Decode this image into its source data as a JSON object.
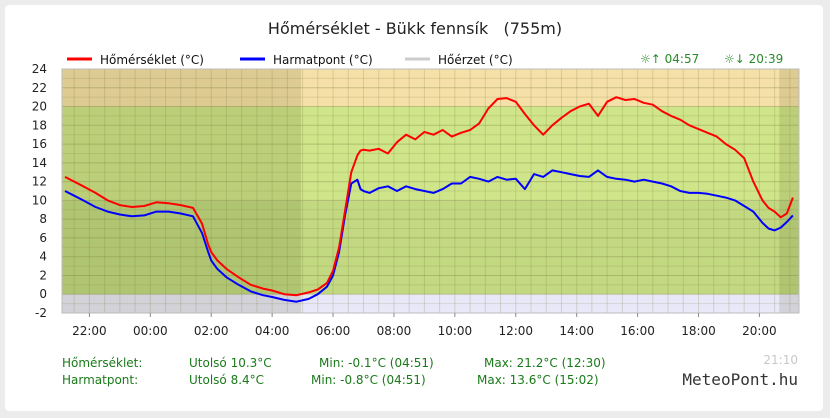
{
  "chart_data": {
    "type": "line",
    "title": "Hőmérséklet - Bükk fennsík   (755m)",
    "ylim": [
      -2,
      24
    ],
    "y_ticks": [
      "24",
      "22",
      "20",
      "18",
      "16",
      "14",
      "12",
      "10",
      "8",
      "6",
      "4",
      "2",
      "0",
      "-2"
    ],
    "x_ticks": [
      "22:00",
      "00:00",
      "02:00",
      "04:00",
      "06:00",
      "08:00",
      "10:00",
      "12:00",
      "14:00",
      "16:00",
      "18:00",
      "20:00"
    ],
    "x_range_hours": [
      21.1,
      45.3
    ],
    "night_shading": [
      [
        21.1,
        28.95
      ],
      [
        44.65,
        45.3
      ]
    ],
    "bands": [
      {
        "from": 20,
        "to": 24,
        "color": "#f5e0a8"
      },
      {
        "from": 10,
        "to": 20,
        "color": "#cfe58a"
      },
      {
        "from": 0,
        "to": 10,
        "color": "#c2d982"
      },
      {
        "from": -2,
        "to": 0,
        "color": "#e8e8f8"
      }
    ],
    "legend": [
      {
        "label": "Hőmérséklet (°C)",
        "color": "#ff0000"
      },
      {
        "label": "Harmatpont (°C)",
        "color": "#0000ff"
      },
      {
        "label": "Hőérzet (°C)",
        "color": "#cccccc"
      }
    ],
    "sunrise": "☼↑ 04:57",
    "sunset": "☼↓ 20:39",
    "series": [
      {
        "name": "Hőmérséklet (°C)",
        "color": "#ff0000",
        "x": [
          21.2,
          21.5,
          21.8,
          22.2,
          22.6,
          23.0,
          23.4,
          23.8,
          24.2,
          24.6,
          25.0,
          25.4,
          25.7,
          25.9,
          26.0,
          26.2,
          26.5,
          26.9,
          27.3,
          27.7,
          28.0,
          28.4,
          28.8,
          29.2,
          29.5,
          29.8,
          30.0,
          30.2,
          30.4,
          30.6,
          30.8,
          30.9,
          31.0,
          31.2,
          31.5,
          31.8,
          32.1,
          32.4,
          32.7,
          33.0,
          33.3,
          33.6,
          33.9,
          34.2,
          34.5,
          34.8,
          35.1,
          35.4,
          35.7,
          36.0,
          36.3,
          36.6,
          36.9,
          37.2,
          37.5,
          37.8,
          38.1,
          38.4,
          38.7,
          39.0,
          39.3,
          39.6,
          39.9,
          40.2,
          40.5,
          40.8,
          41.1,
          41.4,
          41.7,
          42.0,
          42.3,
          42.6,
          42.9,
          43.2,
          43.5,
          43.8,
          44.1,
          44.3,
          44.5,
          44.7,
          44.9,
          45.1
        ],
        "y": [
          12.5,
          12.0,
          11.5,
          10.8,
          10.0,
          9.5,
          9.3,
          9.4,
          9.8,
          9.7,
          9.5,
          9.2,
          7.5,
          5.3,
          4.5,
          3.6,
          2.7,
          1.8,
          1.0,
          0.6,
          0.4,
          0.0,
          -0.1,
          0.2,
          0.5,
          1.2,
          2.5,
          5.0,
          9.0,
          13.0,
          14.8,
          15.3,
          15.4,
          15.3,
          15.5,
          15.0,
          16.2,
          17.0,
          16.5,
          17.3,
          17.0,
          17.5,
          16.8,
          17.2,
          17.5,
          18.2,
          19.8,
          20.8,
          20.9,
          20.5,
          19.2,
          18.0,
          17.0,
          18.0,
          18.8,
          19.5,
          20.0,
          20.3,
          19.0,
          20.5,
          21.0,
          20.7,
          20.8,
          20.4,
          20.2,
          19.5,
          19.0,
          18.6,
          18.0,
          17.6,
          17.2,
          16.8,
          16.0,
          15.4,
          14.5,
          12.0,
          10.0,
          9.2,
          8.8,
          8.2,
          8.6,
          10.3
        ]
      },
      {
        "name": "Harmatpont (°C)",
        "color": "#0000ff",
        "x": [
          21.2,
          21.5,
          21.8,
          22.2,
          22.6,
          23.0,
          23.4,
          23.8,
          24.2,
          24.6,
          25.0,
          25.4,
          25.7,
          25.9,
          26.0,
          26.2,
          26.5,
          26.9,
          27.3,
          27.7,
          28.0,
          28.4,
          28.8,
          29.2,
          29.5,
          29.8,
          30.0,
          30.2,
          30.4,
          30.6,
          30.8,
          30.9,
          31.0,
          31.2,
          31.5,
          31.8,
          32.1,
          32.4,
          32.7,
          33.0,
          33.3,
          33.6,
          33.9,
          34.2,
          34.5,
          34.8,
          35.1,
          35.4,
          35.7,
          36.0,
          36.3,
          36.6,
          36.9,
          37.2,
          37.5,
          37.8,
          38.1,
          38.4,
          38.7,
          39.0,
          39.3,
          39.6,
          39.9,
          40.2,
          40.5,
          40.8,
          41.1,
          41.4,
          41.7,
          42.0,
          42.3,
          42.6,
          42.9,
          43.2,
          43.5,
          43.8,
          44.1,
          44.3,
          44.5,
          44.7,
          44.9,
          45.1
        ],
        "y": [
          11.0,
          10.5,
          10.0,
          9.3,
          8.8,
          8.5,
          8.3,
          8.4,
          8.8,
          8.8,
          8.6,
          8.3,
          6.5,
          4.5,
          3.6,
          2.7,
          1.8,
          1.0,
          0.3,
          -0.1,
          -0.3,
          -0.6,
          -0.8,
          -0.5,
          0.0,
          0.8,
          2.0,
          4.5,
          8.5,
          11.8,
          12.2,
          11.2,
          11.0,
          10.8,
          11.3,
          11.5,
          11.0,
          11.5,
          11.2,
          11.0,
          10.8,
          11.2,
          11.8,
          11.8,
          12.5,
          12.3,
          12.0,
          12.5,
          12.2,
          12.3,
          11.2,
          12.8,
          12.5,
          13.2,
          13.0,
          12.8,
          12.6,
          12.5,
          13.2,
          12.5,
          12.3,
          12.2,
          12.0,
          12.2,
          12.0,
          11.8,
          11.5,
          11.0,
          10.8,
          10.8,
          10.7,
          10.5,
          10.3,
          10.0,
          9.4,
          8.8,
          7.6,
          7.0,
          6.8,
          7.1,
          7.7,
          8.4
        ]
      }
    ]
  },
  "stats": [
    {
      "label": "Hőmérséklet:",
      "last": "Utolsó 10.3°C",
      "min": "Min: -0.1°C (04:51)",
      "max": "Max: 21.2°C (12:30)"
    },
    {
      "label": "Harmatpont:",
      "last": "Utolsó 8.4°C",
      "min": "Min: -0.8°C (04:51)",
      "max": "Max: 13.6°C (15:02)"
    }
  ],
  "timestamp": "21:10",
  "brand": "MeteoPont.hu"
}
